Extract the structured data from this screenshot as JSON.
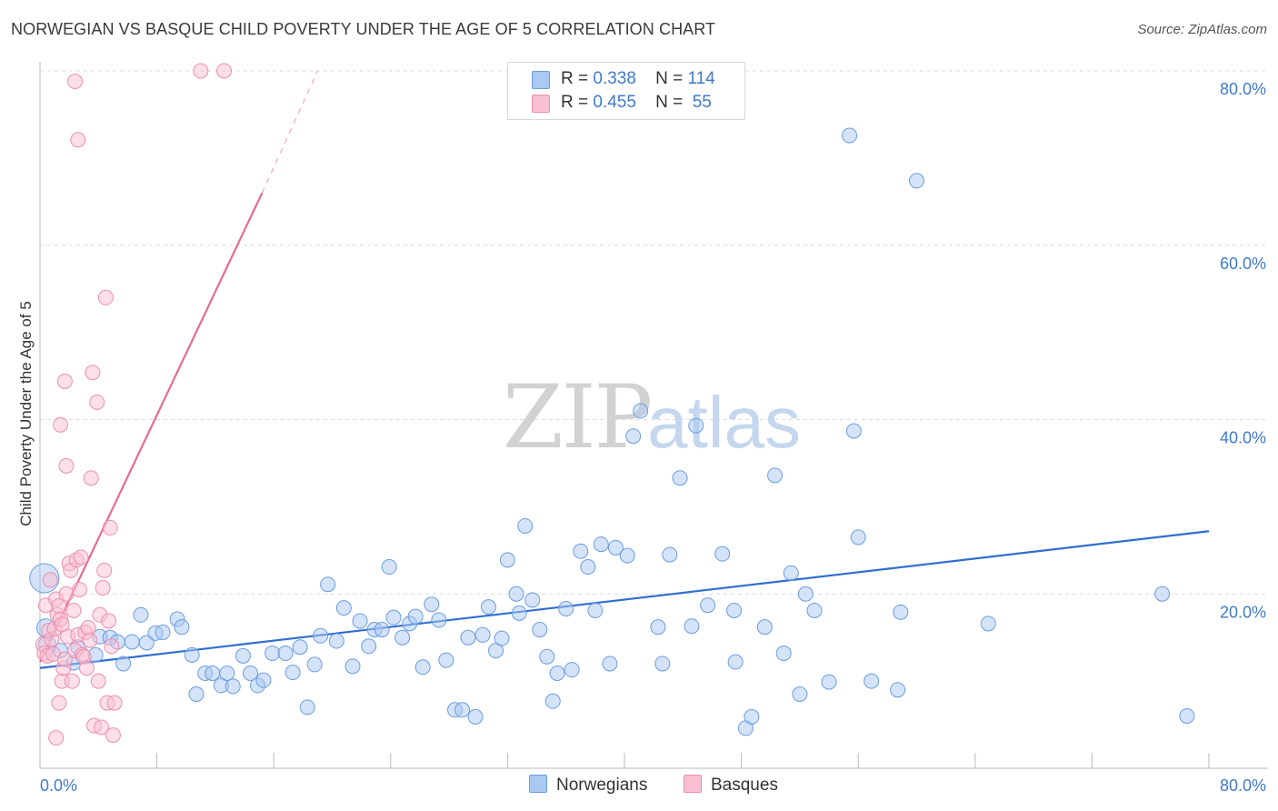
{
  "title": "NORWEGIAN VS BASQUE CHILD POVERTY UNDER THE AGE OF 5 CORRELATION CHART",
  "source": "Source: ZipAtlas.com",
  "watermark": {
    "zip": "ZIP",
    "atlas": "atlas"
  },
  "legend": {
    "rows": [
      {
        "r_label": "R =",
        "r_value": "0.338",
        "n_label": "N =",
        "n_value": "114",
        "color": "#a9c8f2",
        "border": "#6b9de0"
      },
      {
        "r_label": "R =",
        "r_value": "0.455",
        "n_label": "N =",
        "n_value": "55",
        "color": "#f9c0d2",
        "border": "#ec8fae"
      }
    ]
  },
  "bottom_legend": [
    {
      "label": "Norwegians",
      "color": "#a9c8f2",
      "border": "#6b9de0"
    },
    {
      "label": "Basques",
      "color": "#f9c0d2",
      "border": "#ec8fae"
    }
  ],
  "chart_data": {
    "type": "scatter",
    "title": "NORWEGIAN VS BASQUE CHILD POVERTY UNDER THE AGE OF 5 CORRELATION CHART",
    "xlabel": "",
    "ylabel": "Child Poverty Under the Age of 5",
    "xlim": [
      0,
      80
    ],
    "ylim": [
      0,
      80
    ],
    "x_tick_labels": [
      "0.0%",
      "80.0%"
    ],
    "y_tick_labels": [
      {
        "value": 20,
        "label": "20.0%"
      },
      {
        "value": 40,
        "label": "40.0%"
      },
      {
        "value": 60,
        "label": "60.0%"
      },
      {
        "value": 80,
        "label": "80.0%"
      }
    ],
    "colors": {
      "norwegians": "#a9c8f2",
      "norwegians_line": "#2f6fd0",
      "basques": "#f9c0d2",
      "basques_line": "#e76a95"
    },
    "series": [
      {
        "name": "Norwegians",
        "trend": {
          "x0": 0,
          "y0": 11.5,
          "x1": 80,
          "y1": 27.2
        },
        "points": [
          [
            0.3,
            21.8
          ],
          [
            0.4,
            16.1
          ],
          [
            0.5,
            14.1
          ],
          [
            1.4,
            13.5
          ],
          [
            2.3,
            12.1
          ],
          [
            2.6,
            13.9
          ],
          [
            3.8,
            13.0
          ],
          [
            4.1,
            15.1
          ],
          [
            4.8,
            15.0
          ],
          [
            5.3,
            14.5
          ],
          [
            5.7,
            12.0
          ],
          [
            6.3,
            14.5
          ],
          [
            6.9,
            17.6
          ],
          [
            7.3,
            14.4
          ],
          [
            7.9,
            15.5
          ],
          [
            8.4,
            15.6
          ],
          [
            9.4,
            17.1
          ],
          [
            9.7,
            16.2
          ],
          [
            10.4,
            13.0
          ],
          [
            10.7,
            8.5
          ],
          [
            11.3,
            10.9
          ],
          [
            11.8,
            10.9
          ],
          [
            12.4,
            9.5
          ],
          [
            12.8,
            10.9
          ],
          [
            13.2,
            9.4
          ],
          [
            13.9,
            12.9
          ],
          [
            14.4,
            10.9
          ],
          [
            14.9,
            9.5
          ],
          [
            15.3,
            10.1
          ],
          [
            15.9,
            13.2
          ],
          [
            16.8,
            13.2
          ],
          [
            17.3,
            11.0
          ],
          [
            17.8,
            13.9
          ],
          [
            18.3,
            7.0
          ],
          [
            18.8,
            11.9
          ],
          [
            19.2,
            15.2
          ],
          [
            19.7,
            21.1
          ],
          [
            20.3,
            14.6
          ],
          [
            20.8,
            18.4
          ],
          [
            21.4,
            11.7
          ],
          [
            21.9,
            16.9
          ],
          [
            22.5,
            14.0
          ],
          [
            22.9,
            15.9
          ],
          [
            23.4,
            15.9
          ],
          [
            23.9,
            23.1
          ],
          [
            24.2,
            17.3
          ],
          [
            24.8,
            15.0
          ],
          [
            25.3,
            16.6
          ],
          [
            25.7,
            17.4
          ],
          [
            26.2,
            11.6
          ],
          [
            26.8,
            18.8
          ],
          [
            27.3,
            17.0
          ],
          [
            27.8,
            12.4
          ],
          [
            28.4,
            6.7
          ],
          [
            28.9,
            6.7
          ],
          [
            29.3,
            15.0
          ],
          [
            29.8,
            5.9
          ],
          [
            30.3,
            15.3
          ],
          [
            30.7,
            18.5
          ],
          [
            31.2,
            13.5
          ],
          [
            31.6,
            14.9
          ],
          [
            32.0,
            23.9
          ],
          [
            32.6,
            20.0
          ],
          [
            32.8,
            17.8
          ],
          [
            33.2,
            27.8
          ],
          [
            33.7,
            19.3
          ],
          [
            34.2,
            15.9
          ],
          [
            34.7,
            12.8
          ],
          [
            35.1,
            7.7
          ],
          [
            35.4,
            10.9
          ],
          [
            36.0,
            18.3
          ],
          [
            36.4,
            11.3
          ],
          [
            37.0,
            24.9
          ],
          [
            37.5,
            23.1
          ],
          [
            38.0,
            18.1
          ],
          [
            38.4,
            25.7
          ],
          [
            39.0,
            12.0
          ],
          [
            39.4,
            25.3
          ],
          [
            40.2,
            24.4
          ],
          [
            40.6,
            38.1
          ],
          [
            41.1,
            41.0
          ],
          [
            42.3,
            16.2
          ],
          [
            42.6,
            12.0
          ],
          [
            43.1,
            24.5
          ],
          [
            43.8,
            33.3
          ],
          [
            44.6,
            16.3
          ],
          [
            44.9,
            39.3
          ],
          [
            45.7,
            18.7
          ],
          [
            46.7,
            24.6
          ],
          [
            47.5,
            18.1
          ],
          [
            47.6,
            12.2
          ],
          [
            48.3,
            4.6
          ],
          [
            48.7,
            5.9
          ],
          [
            49.6,
            16.2
          ],
          [
            50.3,
            33.6
          ],
          [
            50.9,
            13.2
          ],
          [
            51.4,
            22.4
          ],
          [
            52.0,
            8.5
          ],
          [
            52.4,
            20.0
          ],
          [
            53.0,
            18.1
          ],
          [
            54.0,
            9.9
          ],
          [
            55.4,
            72.6
          ],
          [
            55.7,
            38.7
          ],
          [
            56.0,
            26.5
          ],
          [
            56.9,
            10.0
          ],
          [
            58.7,
            9.0
          ],
          [
            58.9,
            17.9
          ],
          [
            60.0,
            67.4
          ],
          [
            64.9,
            16.6
          ],
          [
            76.8,
            20.0
          ],
          [
            78.5,
            6.0
          ]
        ]
      },
      {
        "name": "Basques",
        "trend": {
          "x0": 0,
          "y0": 12.2,
          "x1": 15.2,
          "y1": 66.0
        },
        "trend_dashed": {
          "x0": 15.2,
          "y0": 66.0,
          "x1": 19.0,
          "y1": 80.0
        },
        "points": [
          [
            0.2,
            14.2
          ],
          [
            0.3,
            13.2
          ],
          [
            0.4,
            18.7
          ],
          [
            0.5,
            12.9
          ],
          [
            0.6,
            15.8
          ],
          [
            0.7,
            21.6
          ],
          [
            0.8,
            14.8
          ],
          [
            0.9,
            13.1
          ],
          [
            1.0,
            16.0
          ],
          [
            1.1,
            19.4
          ],
          [
            1.2,
            17.6
          ],
          [
            1.3,
            18.6
          ],
          [
            1.4,
            17.1
          ],
          [
            1.5,
            10.0
          ],
          [
            1.5,
            16.5
          ],
          [
            1.6,
            11.5
          ],
          [
            1.7,
            12.5
          ],
          [
            1.8,
            20.0
          ],
          [
            1.9,
            15.1
          ],
          [
            2.0,
            23.5
          ],
          [
            2.1,
            22.7
          ],
          [
            2.2,
            10.0
          ],
          [
            2.3,
            18.1
          ],
          [
            2.4,
            13.5
          ],
          [
            2.5,
            23.9
          ],
          [
            2.6,
            15.3
          ],
          [
            2.7,
            20.5
          ],
          [
            2.8,
            24.2
          ],
          [
            2.9,
            13.0
          ],
          [
            3.0,
            12.8
          ],
          [
            3.1,
            15.6
          ],
          [
            3.2,
            11.5
          ],
          [
            3.3,
            16.1
          ],
          [
            3.4,
            14.7
          ],
          [
            3.5,
            33.3
          ],
          [
            3.6,
            45.4
          ],
          [
            3.7,
            4.9
          ],
          [
            3.9,
            42.0
          ],
          [
            4.0,
            10.0
          ],
          [
            4.1,
            17.6
          ],
          [
            4.2,
            4.7
          ],
          [
            4.3,
            20.7
          ],
          [
            4.4,
            22.7
          ],
          [
            4.5,
            54.0
          ],
          [
            4.6,
            7.5
          ],
          [
            4.7,
            16.9
          ],
          [
            4.8,
            27.6
          ],
          [
            4.9,
            14.0
          ],
          [
            5.0,
            3.8
          ],
          [
            5.1,
            7.5
          ],
          [
            1.1,
            3.5
          ],
          [
            1.3,
            7.5
          ],
          [
            1.4,
            39.4
          ],
          [
            1.7,
            44.4
          ],
          [
            1.8,
            34.7
          ]
        ],
        "points_extra": [
          [
            2.4,
            78.8
          ],
          [
            2.6,
            72.1
          ],
          [
            11.0,
            80.0
          ],
          [
            12.6,
            80.0
          ]
        ]
      }
    ]
  },
  "ylabel": "Child Poverty Under the Age of 5"
}
